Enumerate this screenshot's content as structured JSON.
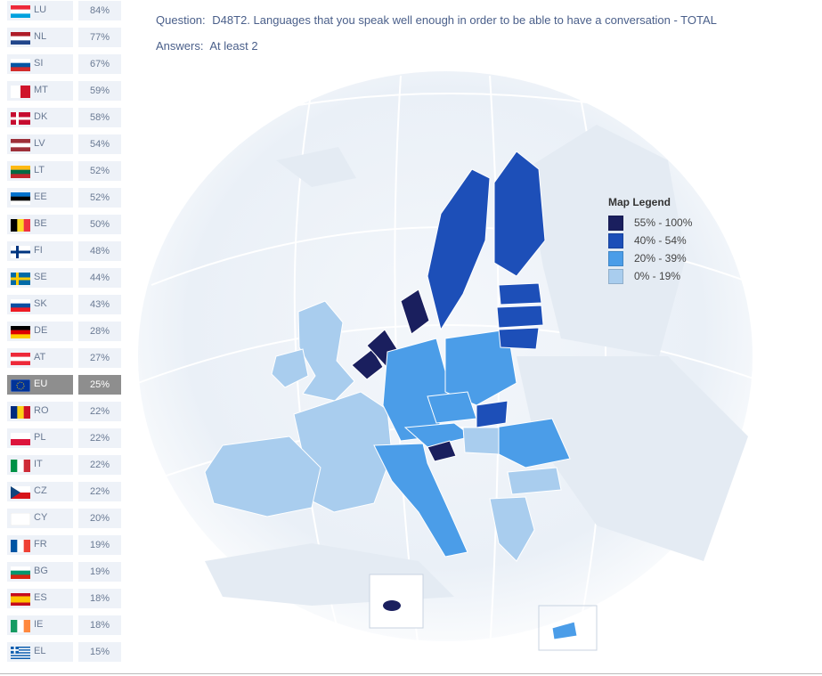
{
  "header": {
    "question_label": "Question:",
    "question_text": "D48T2. Languages that you speak well enough in order to be able to have a conversation - TOTAL",
    "answers_label": "Answers:",
    "answers_text": "At least 2"
  },
  "ranking": [
    {
      "code": "LU",
      "value": "84%"
    },
    {
      "code": "NL",
      "value": "77%"
    },
    {
      "code": "SI",
      "value": "67%"
    },
    {
      "code": "MT",
      "value": "59%"
    },
    {
      "code": "DK",
      "value": "58%"
    },
    {
      "code": "LV",
      "value": "54%"
    },
    {
      "code": "LT",
      "value": "52%"
    },
    {
      "code": "EE",
      "value": "52%"
    },
    {
      "code": "BE",
      "value": "50%"
    },
    {
      "code": "FI",
      "value": "48%"
    },
    {
      "code": "SE",
      "value": "44%"
    },
    {
      "code": "SK",
      "value": "43%"
    },
    {
      "code": "DE",
      "value": "28%"
    },
    {
      "code": "AT",
      "value": "27%"
    },
    {
      "code": "EU",
      "value": "25%"
    },
    {
      "code": "RO",
      "value": "22%"
    },
    {
      "code": "PL",
      "value": "22%"
    },
    {
      "code": "IT",
      "value": "22%"
    },
    {
      "code": "CZ",
      "value": "22%"
    },
    {
      "code": "CY",
      "value": "20%"
    },
    {
      "code": "FR",
      "value": "19%"
    },
    {
      "code": "BG",
      "value": "19%"
    },
    {
      "code": "ES",
      "value": "18%"
    },
    {
      "code": "IE",
      "value": "18%"
    },
    {
      "code": "EL",
      "value": "15%"
    }
  ],
  "legend": {
    "title": "Map Legend",
    "items": [
      {
        "label": "55% - 100%",
        "color": "#1a1f5e"
      },
      {
        "label": "40% - 54%",
        "color": "#1d4fb8"
      },
      {
        "label": "20% - 39%",
        "color": "#4b9de8"
      },
      {
        "label": "0% - 19%",
        "color": "#a9cdee"
      }
    ]
  },
  "colors": {
    "dark": "#1a1f5e",
    "mid": "#1d4fb8",
    "light": "#4b9de8",
    "pale": "#a9cdee",
    "highlight": "#8e8e8e"
  }
}
